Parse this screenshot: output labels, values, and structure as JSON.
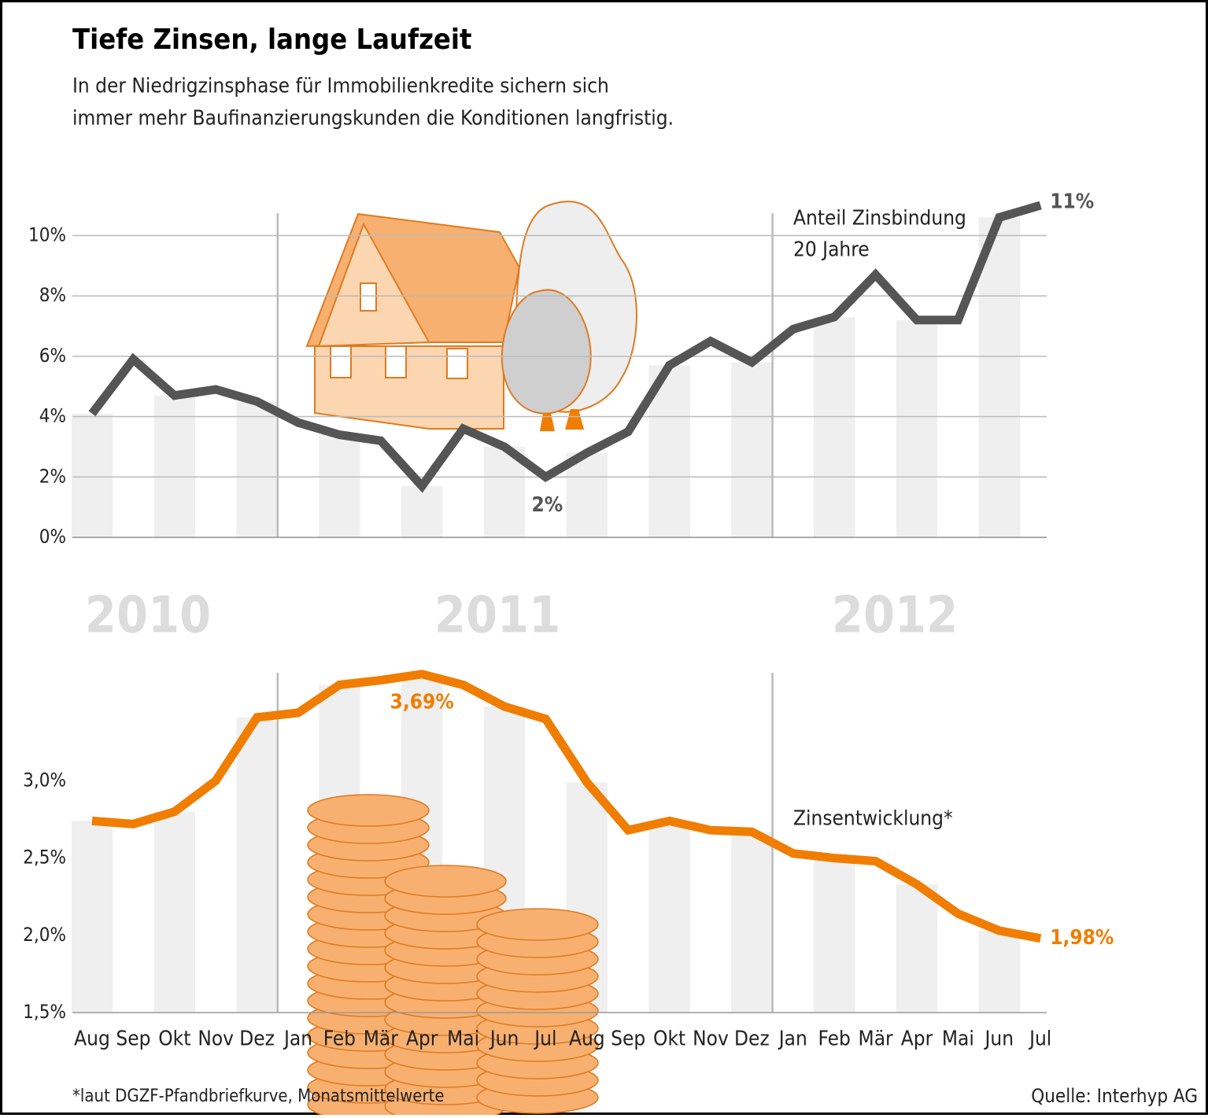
{
  "title": "Tiefe Zinsen, lange Laufzeit",
  "subtitle": [
    "In der Niedrigzinsphase für Immobilienkredite sichern sich",
    "immer mehr Baufinanzierungskunden die Konditionen langfristig."
  ],
  "years": [
    "2010",
    "2011",
    "2012"
  ],
  "footnote": "*laut DGZF-Pfandbriefkurve, Monatsmittelwerte",
  "source": "Quelle: Interhyp AG",
  "chart_data": [
    {
      "type": "line",
      "series": [
        {
          "name": [
            "Anteil Zinsbindung",
            "20 Jahre"
          ],
          "color": "#555555",
          "values": [
            4.1,
            5.9,
            4.7,
            4.9,
            4.5,
            3.8,
            3.4,
            3.2,
            1.7,
            3.6,
            3.0,
            2,
            2.8,
            3.5,
            5.7,
            6.5,
            5.8,
            6.9,
            7.3,
            8.7,
            7.2,
            7.2,
            10.6,
            11
          ],
          "value_labels": [
            null,
            null,
            null,
            null,
            null,
            null,
            null,
            null,
            null,
            null,
            null,
            "2%",
            null,
            null,
            null,
            null,
            null,
            null,
            null,
            null,
            null,
            null,
            null,
            "11%"
          ]
        }
      ],
      "ylim": [
        0,
        11
      ],
      "yticks": [
        {
          "value": 0,
          "label": "0%"
        },
        {
          "value": 2,
          "label": "2%"
        },
        {
          "value": 4,
          "label": "4%"
        },
        {
          "value": 6,
          "label": "6%"
        },
        {
          "value": 8,
          "label": "8%"
        },
        {
          "value": 10,
          "label": "10%"
        }
      ],
      "grid": true
    },
    {
      "type": "line",
      "categories": [
        "Aug",
        "Sep",
        "Okt",
        "Nov",
        "Dez",
        "Jan",
        "Feb",
        "Mär",
        "Apr",
        "Mai",
        "Jun",
        "Jul",
        "Aug",
        "Sep",
        "Okt",
        "Nov",
        "Dez",
        "Jan",
        "Feb",
        "Mär",
        "Apr",
        "Mai",
        "Jun",
        "Jul"
      ],
      "series": [
        {
          "name": "Zinsentwicklung*",
          "color": "#f07d00",
          "values": [
            2.74,
            2.72,
            2.8,
            3.0,
            3.41,
            3.44,
            3.62,
            3.65,
            3.69,
            3.62,
            3.48,
            3.4,
            2.99,
            2.68,
            2.74,
            2.68,
            2.67,
            2.53,
            2.5,
            2.48,
            2.33,
            2.14,
            2.03,
            1.98
          ],
          "value_labels": [
            null,
            null,
            null,
            null,
            null,
            null,
            null,
            null,
            "3,69%",
            null,
            null,
            null,
            null,
            null,
            null,
            null,
            null,
            null,
            null,
            null,
            null,
            null,
            null,
            "1,98%"
          ]
        }
      ],
      "ylim": [
        1.5,
        3.75
      ],
      "yticks": [
        {
          "value": 1.5,
          "label": "1,5%"
        },
        {
          "value": 2.0,
          "label": "2,0%"
        },
        {
          "value": 2.5,
          "label": "2,5%"
        },
        {
          "value": 3.0,
          "label": "3,0%"
        }
      ],
      "grid": false
    }
  ]
}
